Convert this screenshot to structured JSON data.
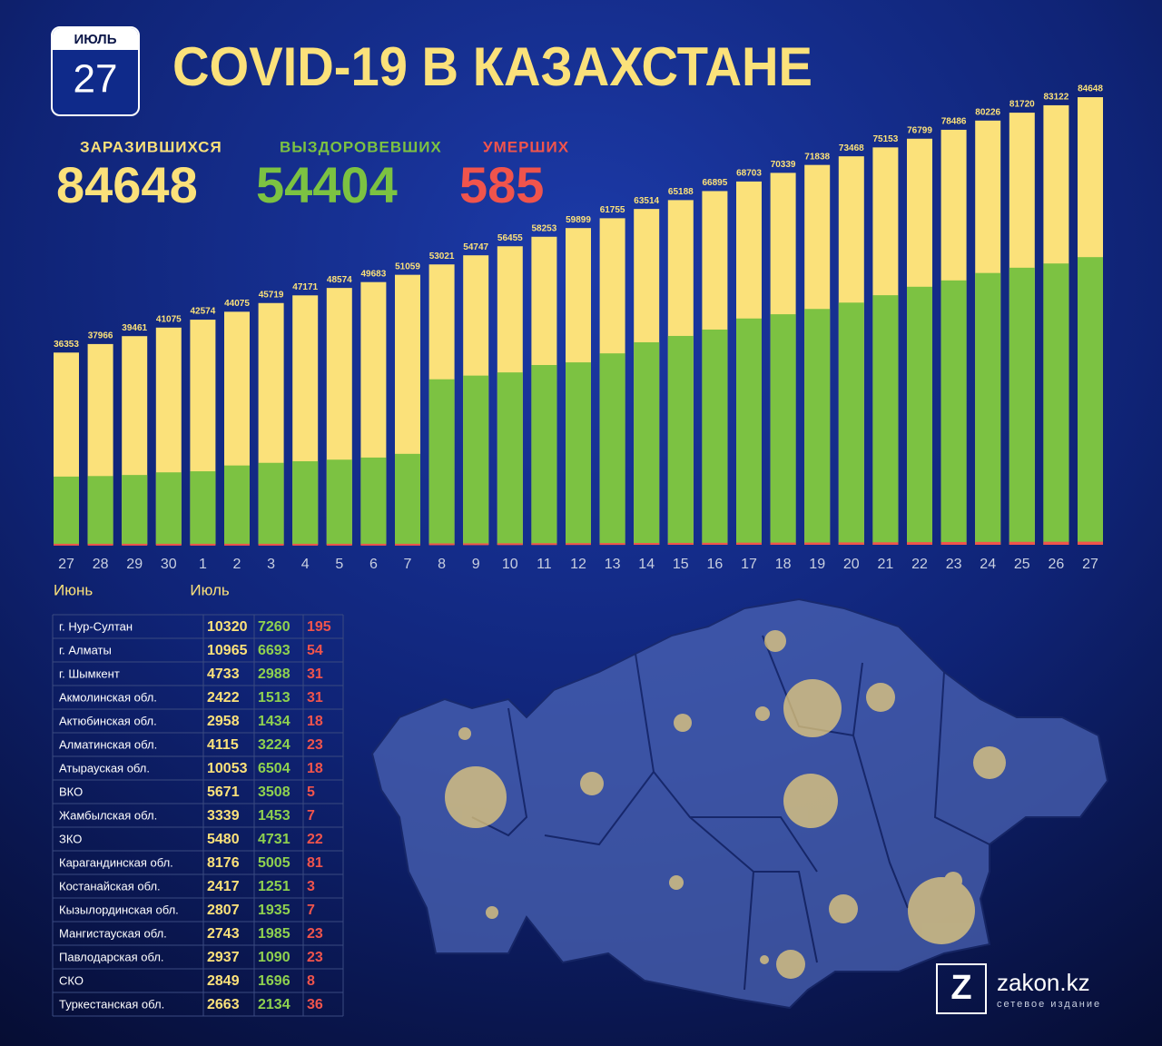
{
  "header": {
    "month": "ИЮЛЬ",
    "day": "27",
    "title": "COVID-19 В КАЗАХСТАНЕ"
  },
  "chart_data": {
    "type": "bar",
    "overlay": true,
    "categories": [
      "27",
      "28",
      "29",
      "30",
      "1",
      "2",
      "3",
      "4",
      "5",
      "6",
      "7",
      "8",
      "9",
      "10",
      "11",
      "12",
      "13",
      "14",
      "15",
      "16",
      "17",
      "18",
      "19",
      "20",
      "21",
      "22",
      "23",
      "24",
      "25",
      "26",
      "27"
    ],
    "months": [
      "Июнь",
      "Июль"
    ],
    "ylim": [
      0,
      85000
    ],
    "series": [
      {
        "name": "ЗАРАЗИВШИХСЯ",
        "color": "#fbe17a",
        "labels": true,
        "values": [
          36353,
          37966,
          39461,
          41075,
          42574,
          44075,
          45719,
          47171,
          48574,
          49683,
          51059,
          53021,
          54747,
          56455,
          58253,
          59899,
          61755,
          63514,
          65188,
          66895,
          68703,
          70339,
          71838,
          73468,
          75153,
          76799,
          78486,
          80226,
          81720,
          83122,
          84648
        ]
      },
      {
        "name": "ВЫЗДОРОВЕВШИХ",
        "color": "#7cc242",
        "values": [
          12900,
          13000,
          13200,
          13700,
          13900,
          15000,
          15500,
          15800,
          16100,
          16500,
          17200,
          31300,
          32000,
          32600,
          34000,
          34500,
          36200,
          38300,
          39500,
          40700,
          42800,
          43600,
          44600,
          45800,
          47200,
          48800,
          50000,
          51400,
          52400,
          53200,
          54404
        ]
      },
      {
        "name": "УМЕРШИХ",
        "color": "#f0544c",
        "values": [
          188,
          188,
          188,
          188,
          188,
          188,
          188,
          188,
          188,
          188,
          188,
          264,
          275,
          287,
          303,
          313,
          325,
          340,
          357,
          375,
          400,
          410,
          423,
          450,
          470,
          499,
          520,
          540,
          556,
          572,
          585
        ]
      }
    ]
  },
  "table": {
    "rows": [
      [
        "г. Нур-Султан",
        10320,
        7260,
        195
      ],
      [
        "г. Алматы",
        10965,
        6693,
        54
      ],
      [
        "г. Шымкент",
        4733,
        2988,
        31
      ],
      [
        "Акмолинская обл.",
        2422,
        1513,
        31
      ],
      [
        "Актюбинская обл.",
        2958,
        1434,
        18
      ],
      [
        "Алматинская обл.",
        4115,
        3224,
        23
      ],
      [
        "Атырауская обл.",
        10053,
        6504,
        18
      ],
      [
        "ВКО",
        5671,
        3508,
        5
      ],
      [
        "Жамбылская обл.",
        3339,
        1453,
        7
      ],
      [
        "ЗКО",
        5480,
        4731,
        22
      ],
      [
        "Карагандинская обл.",
        8176,
        5005,
        81
      ],
      [
        "Костанайская обл.",
        2417,
        1251,
        3
      ],
      [
        "Кызылординская обл.",
        2807,
        1935,
        7
      ],
      [
        "Мангистауская обл.",
        2743,
        1985,
        23
      ],
      [
        "Павлодарская обл.",
        2937,
        1090,
        23
      ],
      [
        "СКО",
        2849,
        1696,
        8
      ],
      [
        "Туркестанская обл.",
        2663,
        2134,
        36
      ]
    ]
  },
  "logo": {
    "name": "zakon.kz",
    "tagline": "сетевое издание"
  }
}
